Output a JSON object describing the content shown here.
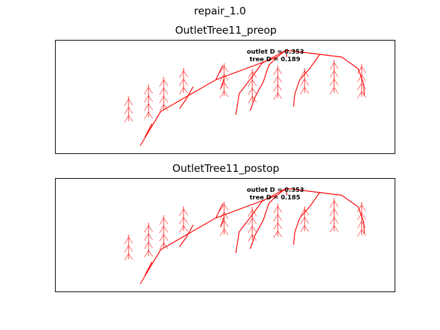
{
  "figure": {
    "title": "repair_1.0",
    "tree_color": "#ff0000"
  },
  "panels": [
    {
      "title": "OutletTree11_preop",
      "outlet_label": "outlet D = 0.353",
      "tree_label": "tree D = 0.189"
    },
    {
      "title": "OutletTree11_postop",
      "outlet_label": "outlet D = 0.353",
      "tree_label": "tree D = 0.185"
    }
  ]
}
